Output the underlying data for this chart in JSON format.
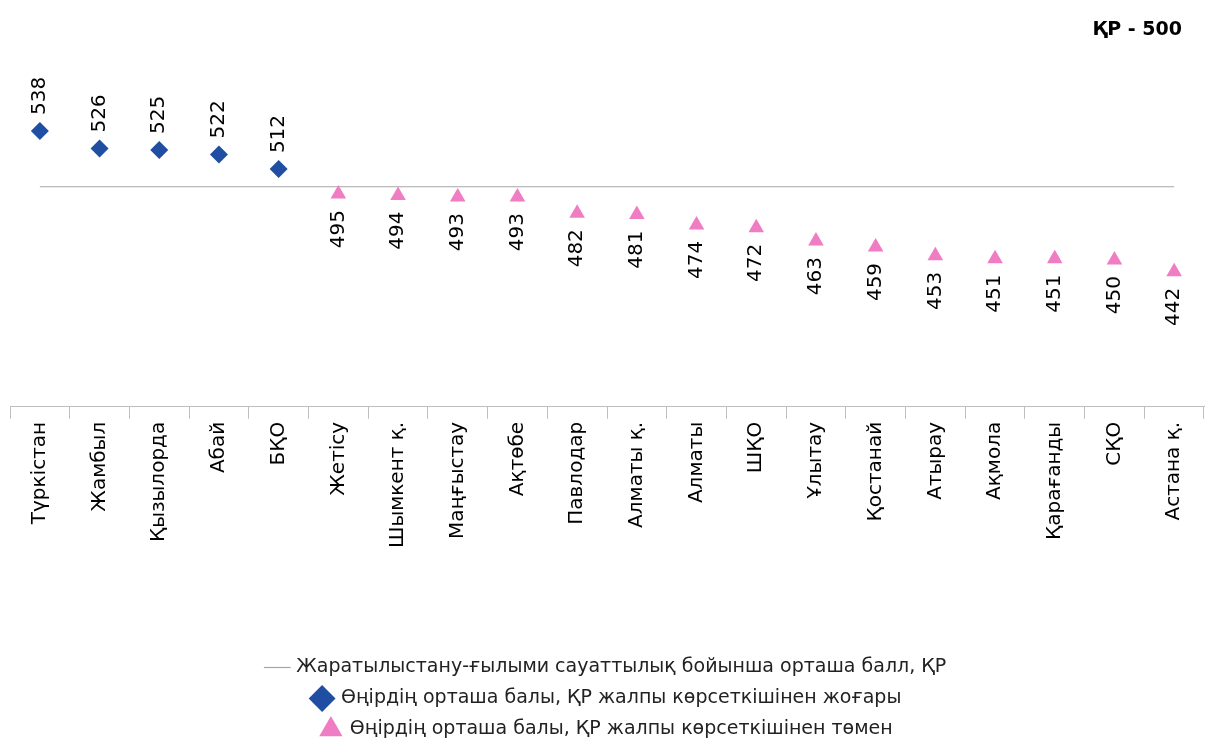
{
  "chart_data": {
    "type": "scatter",
    "categories": [
      "Түркістан",
      "Жамбыл",
      "Қызылорда",
      "Абай",
      "БҚО",
      "Жетісу",
      "Шымкент қ.",
      "Маңғыстау",
      "Ақтөбе",
      "Павлодар",
      "Алматы қ.",
      "Алматы",
      "ШҚО",
      "Ұлытау",
      "Қостанай",
      "Атырау",
      "Ақмола",
      "Қарағанды",
      "СҚО",
      "Астана қ."
    ],
    "series": [
      {
        "name": "Жаратылыстану-ғылыми сауаттылық бойынша орташа балл, ҚР",
        "type": "line",
        "color": "#a6a6a6",
        "marker": "none",
        "line_style": "solid",
        "values": [
          500,
          500,
          500,
          500,
          500,
          500,
          500,
          500,
          500,
          500,
          500,
          500,
          500,
          500,
          500,
          500,
          500,
          500,
          500,
          500
        ]
      },
      {
        "name": "Өңірдің орташа балы, ҚР жалпы көрсеткішінен жоғары",
        "type": "scatter",
        "color": "#1f4ea3",
        "marker": "diamond",
        "values": [
          538,
          526,
          525,
          522,
          512,
          null,
          null,
          null,
          null,
          null,
          null,
          null,
          null,
          null,
          null,
          null,
          null,
          null,
          null,
          null
        ],
        "value_labels": [
          "538",
          "526",
          "525",
          "522",
          "512",
          null,
          null,
          null,
          null,
          null,
          null,
          null,
          null,
          null,
          null,
          null,
          null,
          null,
          null,
          null
        ]
      },
      {
        "name": "Өңірдің орташа балы, ҚР жалпы көрсеткішінен төмен",
        "type": "scatter",
        "color": "#f07cc3",
        "marker": "triangle",
        "values": [
          null,
          null,
          null,
          null,
          null,
          495,
          494,
          493,
          493,
          482,
          481,
          474,
          472,
          463,
          459,
          453,
          451,
          451,
          450,
          442
        ],
        "value_labels": [
          null,
          null,
          null,
          null,
          null,
          "495",
          "494",
          "493",
          "493",
          "482",
          "481",
          "474",
          "472",
          "463",
          "459",
          "453",
          "451",
          "451",
          "450",
          "442"
        ]
      }
    ],
    "tick_labels": "x",
    "legend": "bottom",
    "grid": false,
    "annotations": [
      "ҚР - 500"
    ]
  }
}
